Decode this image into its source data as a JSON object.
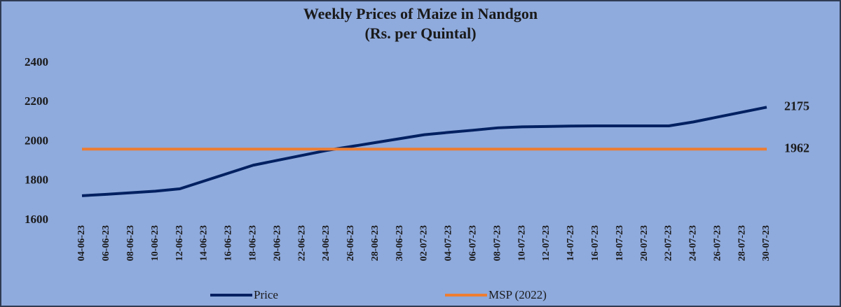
{
  "chart_data": {
    "type": "line",
    "title": "Weekly Prices of Maize in Nandgon",
    "subtitle": "(Rs. per Quintal)",
    "categories": [
      "04-06-23",
      "06-06-23",
      "08-06-23",
      "10-06-23",
      "12-06-23",
      "14-06-23",
      "16-06-23",
      "18-06-23",
      "20-06-23",
      "22-06-23",
      "24-06-23",
      "26-06-23",
      "28-06-23",
      "30-06-23",
      "02-07-23",
      "04-07-23",
      "06-07-23",
      "08-07-23",
      "10-07-23",
      "12-07-23",
      "14-07-23",
      "16-07-23",
      "18-07-23",
      "20-07-23",
      "22-07-23",
      "24-07-23",
      "26-07-23",
      "28-07-23",
      "30-07-23"
    ],
    "series": [
      {
        "name": "Price",
        "color": "#002060",
        "values": [
          1725,
          1732,
          1740,
          1748,
          1760,
          1800,
          1840,
          1880,
          1905,
          1930,
          1955,
          1975,
          1995,
          2015,
          2035,
          2047,
          2058,
          2070,
          2075,
          2077,
          2079,
          2080,
          2080,
          2080,
          2080,
          2100,
          2125,
          2150,
          2175
        ]
      },
      {
        "name": "MSP (2022)",
        "color": "#ed7d31",
        "values": [
          1962,
          1962,
          1962,
          1962,
          1962,
          1962,
          1962,
          1962,
          1962,
          1962,
          1962,
          1962,
          1962,
          1962,
          1962,
          1962,
          1962,
          1962,
          1962,
          1962,
          1962,
          1962,
          1962,
          1962,
          1962,
          1962,
          1962,
          1962,
          1962
        ]
      }
    ],
    "ylim": [
      1600,
      2400
    ],
    "yticks": [
      1600,
      1800,
      2000,
      2200,
      2400
    ],
    "grid": false,
    "legend": "bottom"
  }
}
